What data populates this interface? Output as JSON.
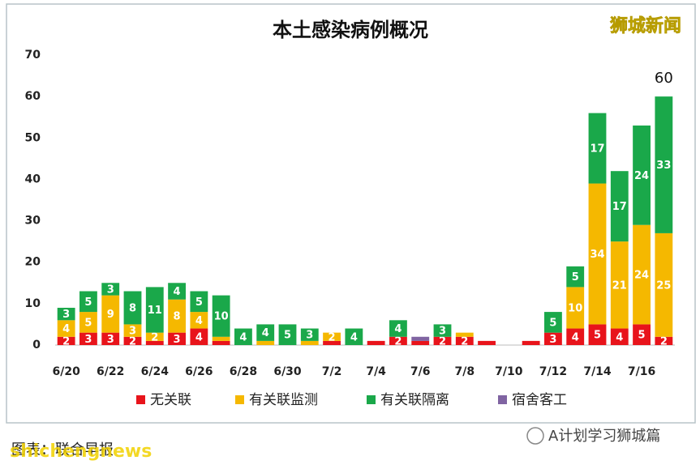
{
  "chart_data": {
    "type": "stacked_bar",
    "title": "本土感染病例概况",
    "categories": [
      "6/20",
      null,
      "6/22",
      null,
      "6/24",
      null,
      "6/26",
      null,
      "6/28",
      null,
      "6/30",
      null,
      "7/2",
      null,
      "7/4",
      null,
      "7/6",
      null,
      "7/8",
      null,
      "7/10",
      null,
      "7/12",
      null,
      "7/14",
      null,
      "7/16",
      null
    ],
    "series": [
      {
        "name": "无关联",
        "color": "#e8141b",
        "values": [
          2,
          3,
          3,
          2,
          1,
          3,
          4,
          1,
          0,
          0,
          0,
          0,
          1,
          0,
          1,
          2,
          1,
          2,
          2,
          1,
          0,
          1,
          3,
          4,
          5,
          4,
          5,
          2
        ]
      },
      {
        "name": "有关联监测",
        "color": "#f5b800",
        "values": [
          4,
          5,
          9,
          3,
          2,
          8,
          4,
          1,
          0,
          1,
          0,
          1,
          2,
          0,
          0,
          0,
          0,
          0,
          1,
          0,
          0,
          0,
          0,
          10,
          34,
          21,
          24,
          25
        ]
      },
      {
        "name": "有关联隔离",
        "color": "#1aa84a",
        "values": [
          3,
          5,
          3,
          8,
          11,
          4,
          5,
          10,
          4,
          4,
          5,
          3,
          0,
          4,
          0,
          4,
          0,
          3,
          0,
          0,
          0,
          0,
          5,
          5,
          17,
          17,
          24,
          33
        ]
      },
      {
        "name": "宿舍客工",
        "color": "#8064a2",
        "values": [
          0,
          0,
          0,
          0,
          0,
          0,
          0,
          0,
          0,
          0,
          0,
          0,
          0,
          0,
          0,
          0,
          1,
          0,
          0,
          0,
          0,
          0,
          0,
          0,
          0,
          0,
          0,
          0
        ]
      }
    ],
    "total_label": "60",
    "ylim": [
      0,
      70
    ],
    "yticks": [
      0,
      10,
      20,
      30,
      40,
      50,
      60,
      70
    ],
    "grid": false,
    "legend": "bottom"
  },
  "watermark_top": "狮城新闻",
  "caption": "图表：联合早报",
  "footer_watermark": "shichengnews",
  "wechat_account": "A计划学习狮城篇"
}
